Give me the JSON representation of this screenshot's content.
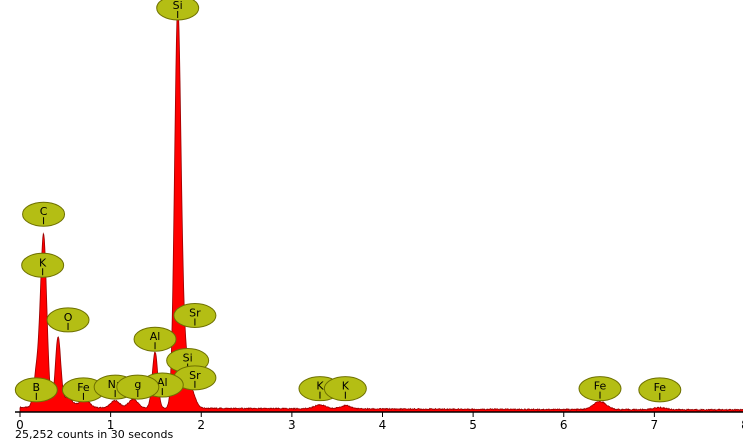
{
  "chart_data": {
    "type": "area",
    "title": "",
    "xlabel": "",
    "ylabel": "",
    "xlim": [
      0,
      8
    ],
    "ylim": [
      0,
      1000
    ],
    "x_ticks": [
      "0",
      "1",
      "2",
      "3",
      "4",
      "5",
      "6",
      "7",
      "8"
    ],
    "grid": false,
    "colors": {
      "spectrum_fill": "#ff0000",
      "spectrum_outline": "#990000",
      "label_fill": "#b4be14",
      "label_stroke": "#6e7000",
      "axis": "#000000"
    },
    "spectrum": {
      "peaks": [
        {
          "x": 0.18,
          "y": 80,
          "w": 0.03
        },
        {
          "x": 0.26,
          "y": 430,
          "w": 0.035
        },
        {
          "x": 0.42,
          "y": 175,
          "w": 0.03
        },
        {
          "x": 0.53,
          "y": 25,
          "w": 0.05
        },
        {
          "x": 0.71,
          "y": 25,
          "w": 0.05
        },
        {
          "x": 1.05,
          "y": 18,
          "w": 0.05
        },
        {
          "x": 1.25,
          "y": 22,
          "w": 0.05
        },
        {
          "x": 1.49,
          "y": 140,
          "w": 0.03
        },
        {
          "x": 1.74,
          "y": 975,
          "w": 0.035
        },
        {
          "x": 1.81,
          "y": 120,
          "w": 0.04
        },
        {
          "x": 1.88,
          "y": 45,
          "w": 0.05
        },
        {
          "x": 3.31,
          "y": 10,
          "w": 0.06
        },
        {
          "x": 3.59,
          "y": 8,
          "w": 0.06
        },
        {
          "x": 6.4,
          "y": 20,
          "w": 0.07
        },
        {
          "x": 7.06,
          "y": 5,
          "w": 0.07
        }
      ],
      "background": 8
    },
    "peak_labels": [
      {
        "element": "Si",
        "x": 1.74,
        "y": 1010
      },
      {
        "element": "C",
        "x": 0.26,
        "y": 497
      },
      {
        "element": "K",
        "x": 0.25,
        "y": 370
      },
      {
        "element": "O",
        "x": 0.53,
        "y": 234
      },
      {
        "element": "Sr",
        "x": 1.93,
        "y": 245
      },
      {
        "element": "Al",
        "x": 1.49,
        "y": 186
      },
      {
        "element": "Si",
        "x": 1.85,
        "y": 133
      },
      {
        "element": "Sr",
        "x": 1.93,
        "y": 90
      },
      {
        "element": "Al",
        "x": 1.57,
        "y": 72
      },
      {
        "element": "B",
        "x": 0.18,
        "y": 60
      },
      {
        "element": "Fe",
        "x": 0.7,
        "y": 60
      },
      {
        "element": "Na",
        "x": 1.05,
        "y": 67
      },
      {
        "element": "g",
        "x": 1.3,
        "y": 67
      },
      {
        "element": "K",
        "x": 3.31,
        "y": 63
      },
      {
        "element": "K",
        "x": 3.59,
        "y": 63
      },
      {
        "element": "Fe",
        "x": 6.4,
        "y": 63
      },
      {
        "element": "Fe",
        "x": 7.06,
        "y": 60
      }
    ],
    "annotation": "25,252 counts in 30 seconds"
  }
}
